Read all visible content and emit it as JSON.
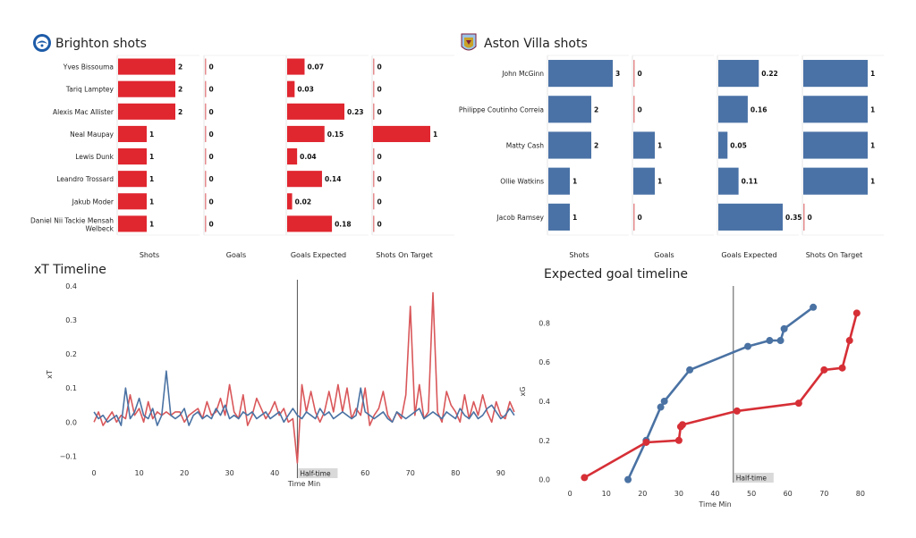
{
  "chart_data": [
    {
      "type": "bar",
      "title": "Brighton shots",
      "team": "brighton",
      "players": [
        "Yves Bissouma",
        "Tariq Lamptey",
        "Alexis Mac Allister",
        "Neal Maupay",
        "Lewis Dunk",
        "Leandro Trossard",
        "Jakub Moder",
        "Daniel Nii Tackie Mensah Welbeck"
      ],
      "metrics": [
        "Shots",
        "Goals",
        "Goals Expected",
        "Shots On Target"
      ],
      "values": {
        "Shots": [
          2,
          2,
          2,
          1,
          1,
          1,
          1,
          1
        ],
        "Goals": [
          0,
          0,
          0,
          0,
          0,
          0,
          0,
          0
        ],
        "Goals Expected": [
          0.07,
          0.03,
          0.23,
          0.15,
          0.04,
          0.14,
          0.02,
          0.18
        ],
        "Shots On Target": [
          0,
          0,
          0,
          1,
          0,
          0,
          0,
          0
        ]
      },
      "value_labels": {
        "Shots": [
          "2",
          "2",
          "2",
          "1",
          "1",
          "1",
          "1",
          "1"
        ],
        "Goals": [
          "0",
          "0",
          "0",
          "0",
          "0",
          "0",
          "0",
          "0"
        ],
        "Goals Expected": [
          "0.07",
          "0.03",
          "0.23",
          "0.15",
          "0.04",
          "0.14",
          "0.02",
          "0.18"
        ],
        "Shots On Target": [
          "0",
          "0",
          "0",
          "1",
          "0",
          "0",
          "0",
          "0"
        ]
      }
    },
    {
      "type": "bar",
      "title": "Aston Villa shots",
      "team": "villa",
      "players": [
        "John McGinn",
        "Philippe Coutinho Correia",
        "Matty Cash",
        "Ollie Watkins",
        "Jacob Ramsey"
      ],
      "metrics": [
        "Shots",
        "Goals",
        "Goals Expected",
        "Shots On Target"
      ],
      "values": {
        "Shots": [
          3,
          2,
          2,
          1,
          1
        ],
        "Goals": [
          0,
          0,
          1,
          1,
          0
        ],
        "Goals Expected": [
          0.22,
          0.16,
          0.05,
          0.11,
          0.35
        ],
        "Shots On Target": [
          1,
          1,
          1,
          1,
          0
        ]
      },
      "value_labels": {
        "Shots": [
          "3",
          "2",
          "2",
          "1",
          "1"
        ],
        "Goals": [
          "0",
          "0",
          "1",
          "1",
          "0"
        ],
        "Goals Expected": [
          "0.22",
          "0.16",
          "0.05",
          "0.11",
          "0.35"
        ],
        "Shots On Target": [
          "1",
          "1",
          "1",
          "1",
          "0"
        ]
      }
    },
    {
      "type": "line",
      "title": "xT Timeline",
      "xlabel": "Time Min",
      "ylabel": "xT",
      "xlim": [
        -1,
        94
      ],
      "ylim": [
        -0.12,
        0.4
      ],
      "xticks": [
        "0",
        "10",
        "20",
        "30",
        "40",
        "50",
        "60",
        "70",
        "80",
        "90"
      ],
      "xtick_values": [
        0,
        10,
        20,
        30,
        40,
        50,
        60,
        70,
        80,
        90
      ],
      "yticks": [
        "−0.1",
        "0.0",
        "0.1",
        "0.2",
        "0.3",
        "0.4"
      ],
      "ytick_values": [
        -0.1,
        0,
        0.1,
        0.2,
        0.3,
        0.4
      ],
      "annotation": "Half-time",
      "annotation_x": 45,
      "series": [
        {
          "team": "brighton",
          "color": "#d9575a",
          "x": [
            0,
            1,
            2,
            3,
            4,
            5,
            6,
            7,
            8,
            9,
            10,
            11,
            12,
            13,
            14,
            15,
            16,
            17,
            18,
            19,
            20,
            21,
            22,
            23,
            24,
            25,
            26,
            27,
            28,
            29,
            30,
            31,
            32,
            33,
            34,
            35,
            36,
            37,
            38,
            39,
            40,
            41,
            42,
            43,
            44,
            45,
            46,
            47,
            48,
            49,
            50,
            51,
            52,
            53,
            54,
            55,
            56,
            57,
            58,
            59,
            60,
            61,
            62,
            63,
            64,
            65,
            66,
            67,
            68,
            69,
            70,
            71,
            72,
            73,
            74,
            75,
            76,
            77,
            78,
            79,
            80,
            81,
            82,
            83,
            84,
            85,
            86,
            87,
            88,
            89,
            90,
            91,
            92,
            93
          ],
          "y": [
            0.0,
            0.03,
            -0.01,
            0.01,
            0.03,
            0.0,
            0.02,
            0.01,
            0.08,
            0.02,
            0.04,
            0.0,
            0.06,
            0.01,
            0.03,
            0.02,
            0.03,
            0.02,
            0.03,
            0.03,
            0.0,
            0.02,
            0.03,
            0.04,
            0.01,
            0.06,
            0.02,
            0.03,
            0.07,
            0.02,
            0.11,
            0.03,
            0.01,
            0.08,
            -0.01,
            0.02,
            0.07,
            0.04,
            0.01,
            0.03,
            0.06,
            0.02,
            0.04,
            0.0,
            0.01,
            -0.12,
            0.11,
            0.03,
            0.09,
            0.03,
            0.0,
            0.03,
            0.09,
            0.03,
            0.11,
            0.03,
            0.1,
            0.01,
            0.04,
            0.02,
            0.1,
            -0.01,
            0.02,
            0.04,
            0.09,
            0.02,
            0.0,
            0.03,
            0.01,
            0.08,
            0.34,
            0.02,
            0.11,
            0.01,
            0.03,
            0.38,
            0.03,
            0.0,
            0.09,
            0.05,
            0.03,
            0.0,
            0.08,
            0.01,
            0.06,
            0.02,
            0.08,
            0.03,
            0.0,
            0.06,
            0.02,
            0.01,
            0.06,
            0.03
          ]
        },
        {
          "team": "villa",
          "color": "#4a72a3",
          "x": [
            0,
            1,
            2,
            3,
            4,
            5,
            6,
            7,
            8,
            9,
            10,
            11,
            12,
            13,
            14,
            15,
            16,
            17,
            18,
            19,
            20,
            21,
            22,
            23,
            24,
            25,
            26,
            27,
            28,
            29,
            30,
            31,
            32,
            33,
            34,
            35,
            36,
            37,
            38,
            39,
            40,
            41,
            42,
            43,
            44,
            45,
            46,
            47,
            48,
            49,
            50,
            51,
            52,
            53,
            54,
            55,
            56,
            57,
            58,
            59,
            60,
            61,
            62,
            63,
            64,
            65,
            66,
            67,
            68,
            69,
            70,
            71,
            72,
            73,
            74,
            75,
            76,
            77,
            78,
            79,
            80,
            81,
            82,
            83,
            84,
            85,
            86,
            87,
            88,
            89,
            90,
            91,
            92,
            93
          ],
          "y": [
            0.03,
            0.01,
            0.02,
            0.0,
            0.01,
            0.02,
            -0.01,
            0.1,
            0.01,
            0.03,
            0.07,
            0.02,
            0.01,
            0.04,
            -0.01,
            0.02,
            0.15,
            0.02,
            0.01,
            0.02,
            0.04,
            -0.01,
            0.02,
            0.03,
            0.01,
            0.02,
            0.01,
            0.04,
            0.02,
            0.05,
            0.01,
            0.02,
            0.01,
            0.03,
            0.02,
            0.03,
            0.01,
            0.02,
            0.03,
            0.01,
            0.02,
            0.03,
            0.0,
            0.02,
            0.04,
            0.02,
            0.01,
            0.03,
            0.02,
            0.01,
            0.04,
            0.02,
            0.03,
            0.01,
            0.02,
            0.03,
            0.02,
            0.01,
            0.02,
            0.1,
            0.03,
            0.02,
            0.01,
            0.02,
            0.03,
            0.01,
            0.0,
            0.03,
            0.02,
            0.01,
            0.02,
            0.03,
            0.04,
            0.01,
            0.02,
            0.03,
            0.02,
            0.01,
            0.03,
            0.02,
            0.01,
            0.04,
            0.02,
            0.01,
            0.03,
            0.01,
            0.02,
            0.04,
            0.05,
            0.03,
            0.01,
            0.02,
            0.04,
            0.02
          ]
        }
      ]
    },
    {
      "type": "line",
      "title": "Expected goal timeline",
      "xlabel": "Time Min",
      "ylabel": "xG",
      "xlim": [
        -2,
        82
      ],
      "ylim": [
        -0.02,
        0.92
      ],
      "xticks": [
        "0",
        "10",
        "20",
        "30",
        "40",
        "50",
        "60",
        "70",
        "80"
      ],
      "xtick_values": [
        0,
        10,
        20,
        30,
        40,
        50,
        60,
        70,
        80
      ],
      "yticks": [
        "0.0",
        "0.2",
        "0.4",
        "0.6",
        "0.8"
      ],
      "ytick_values": [
        0,
        0.2,
        0.4,
        0.6,
        0.8
      ],
      "annotation": "Half-time",
      "annotation_x": 45,
      "series": [
        {
          "team": "villa",
          "color": "#4a72a3",
          "x": [
            16,
            21,
            25,
            26,
            33,
            49,
            55,
            58,
            59,
            67
          ],
          "y": [
            0.0,
            0.2,
            0.37,
            0.4,
            0.56,
            0.68,
            0.71,
            0.71,
            0.77,
            0.88
          ]
        },
        {
          "team": "brighton",
          "color": "#d62f36",
          "x": [
            4,
            21,
            30,
            30.5,
            31,
            46,
            63,
            70,
            75,
            77,
            79
          ],
          "y": [
            0.01,
            0.19,
            0.2,
            0.27,
            0.28,
            0.35,
            0.39,
            0.56,
            0.57,
            0.71,
            0.85
          ]
        }
      ]
    }
  ]
}
